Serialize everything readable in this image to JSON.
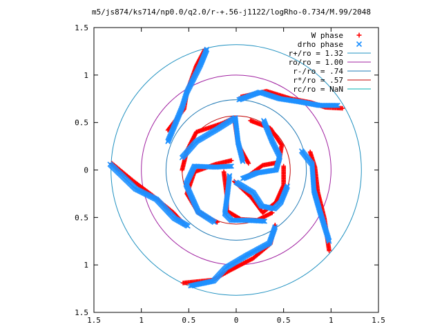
{
  "chart_data": {
    "type": "scatter",
    "title": "m5/js874/ks714/np0.0/q2.0/r-+.56-j1122/logRho-0.734/M.99/2048",
    "xlabel": "",
    "ylabel": "",
    "xlim": [
      -1.5,
      1.5
    ],
    "ylim": [
      -1.5,
      1.5
    ],
    "x_ticks": [
      -1.5,
      -1,
      -0.5,
      0,
      0.5,
      1,
      1.5
    ],
    "y_ticks": [
      -1.5,
      -1,
      -0.5,
      0,
      0.5,
      1,
      1.5
    ],
    "x_tick_labels": [
      "1.5",
      "1",
      "0.5",
      "0",
      "0.5",
      "1",
      "1.5"
    ],
    "y_tick_labels": [
      "1.5",
      "1",
      "0.5",
      "0",
      "0.5",
      "1",
      "1.5"
    ],
    "grid": false,
    "legend_position": "top-right",
    "circles": [
      {
        "label": "r+/ro = 1.32",
        "r": 1.32,
        "color": "#1e90c0"
      },
      {
        "label": "ro/ro = 1.00",
        "r": 1.0,
        "color": "#a020a0"
      },
      {
        "label": "r-/ro = .74",
        "r": 0.74,
        "color": "#1e78b4"
      },
      {
        "label": "r*/ro = .57",
        "r": 0.57,
        "color": "#c00000"
      },
      {
        "label": "rc/ro = NaN",
        "r": null,
        "color": "#00b0b0"
      }
    ],
    "series": [
      {
        "name": "W phase",
        "marker": "plus",
        "color": "#ff0000",
        "spirals": [
          [
            [
              -0.33,
              1.27
            ],
            [
              -0.42,
              1.1
            ],
            [
              -0.52,
              0.82
            ],
            [
              -0.55,
              0.64
            ],
            [
              -0.72,
              0.42
            ]
          ],
          [
            [
              0.05,
              0.77
            ],
            [
              0.32,
              0.83
            ],
            [
              0.58,
              0.75
            ],
            [
              0.79,
              0.71
            ],
            [
              0.94,
              0.66
            ],
            [
              1.12,
              0.65
            ]
          ],
          [
            [
              0.78,
              0.19
            ],
            [
              0.83,
              0.03
            ],
            [
              0.86,
              -0.23
            ],
            [
              0.93,
              -0.51
            ],
            [
              0.98,
              -0.85
            ]
          ],
          [
            [
              0.41,
              -0.58
            ],
            [
              0.36,
              -0.78
            ],
            [
              0.18,
              -0.93
            ],
            [
              -0.07,
              -1.06
            ],
            [
              -0.25,
              -1.16
            ],
            [
              -0.56,
              -1.19
            ]
          ],
          [
            [
              -0.55,
              -0.57
            ],
            [
              -0.66,
              -0.45
            ],
            [
              -0.88,
              -0.27
            ],
            [
              -1.08,
              -0.12
            ],
            [
              -1.31,
              0.07
            ]
          ],
          [
            [
              0.13,
              0.07
            ],
            [
              0.02,
              0.27
            ],
            [
              -0.02,
              0.55
            ],
            [
              -0.15,
              0.49
            ],
            [
              -0.42,
              0.4
            ],
            [
              -0.52,
              0.2
            ],
            [
              -0.57,
              0
            ]
          ],
          [
            [
              0.1,
              -0.08
            ],
            [
              0.28,
              0.05
            ],
            [
              0.45,
              0.08
            ],
            [
              0.48,
              0.26
            ],
            [
              0.36,
              0.44
            ],
            [
              0.15,
              0.52
            ]
          ],
          [
            [
              -0.02,
              -0.12
            ],
            [
              0.16,
              -0.29
            ],
            [
              0.28,
              -0.45
            ],
            [
              0.42,
              -0.34
            ],
            [
              0.5,
              -0.16
            ],
            [
              0.5,
              0.04
            ]
          ],
          [
            [
              -0.13,
              -0.02
            ],
            [
              -0.1,
              -0.26
            ],
            [
              -0.1,
              -0.43
            ],
            [
              0.05,
              -0.52
            ],
            [
              0.22,
              -0.53
            ],
            [
              0.38,
              -0.45
            ]
          ],
          [
            [
              -0.05,
              0.1
            ],
            [
              -0.22,
              0.06
            ],
            [
              -0.44,
              -0.02
            ],
            [
              -0.52,
              -0.25
            ],
            [
              -0.4,
              -0.45
            ],
            [
              -0.2,
              -0.55
            ]
          ]
        ]
      },
      {
        "name": "drho phase",
        "marker": "cross",
        "color": "#1e90ff",
        "spirals": [
          [
            [
              -0.31,
              1.27
            ],
            [
              -0.38,
              1.1
            ],
            [
              -0.52,
              0.82
            ],
            [
              -0.57,
              0.66
            ],
            [
              -0.72,
              0.3
            ]
          ],
          [
            [
              0.03,
              0.74
            ],
            [
              0.25,
              0.82
            ],
            [
              0.46,
              0.75
            ],
            [
              0.66,
              0.72
            ],
            [
              0.88,
              0.68
            ],
            [
              1.07,
              0.68
            ]
          ],
          [
            [
              0.69,
              0.2
            ],
            [
              0.8,
              0.06
            ],
            [
              0.82,
              -0.22
            ],
            [
              0.88,
              -0.43
            ],
            [
              0.98,
              -0.75
            ]
          ],
          [
            [
              0.41,
              -0.6
            ],
            [
              0.35,
              -0.77
            ],
            [
              0.11,
              -0.9
            ],
            [
              -0.11,
              -1.03
            ],
            [
              -0.24,
              -1.17
            ],
            [
              -0.48,
              -1.22
            ]
          ],
          [
            [
              -0.51,
              -0.59
            ],
            [
              -0.65,
              -0.51
            ],
            [
              -0.84,
              -0.31
            ],
            [
              -1.06,
              -0.2
            ],
            [
              -1.33,
              0.06
            ]
          ],
          [
            [
              0.07,
              0.09
            ],
            [
              0.02,
              0.29
            ],
            [
              -0.01,
              0.55
            ],
            [
              -0.2,
              0.43
            ],
            [
              -0.42,
              0.3
            ],
            [
              -0.57,
              0.13
            ]
          ],
          [
            [
              0.07,
              -0.09
            ],
            [
              0.22,
              -0.03
            ],
            [
              0.42,
              0
            ],
            [
              0.46,
              0.14
            ],
            [
              0.38,
              0.3
            ],
            [
              0.29,
              0.52
            ]
          ],
          [
            [
              0.0,
              -0.13
            ],
            [
              0.18,
              -0.24
            ],
            [
              0.27,
              -0.38
            ],
            [
              0.4,
              -0.41
            ],
            [
              0.47,
              -0.34
            ],
            [
              0.54,
              -0.17
            ]
          ],
          [
            [
              -0.07,
              -0.06
            ],
            [
              -0.09,
              -0.24
            ],
            [
              -0.12,
              -0.46
            ],
            [
              -0.05,
              -0.53
            ],
            [
              0.12,
              -0.53
            ],
            [
              0.3,
              -0.54
            ]
          ],
          [
            [
              -0.05,
              0.04
            ],
            [
              -0.22,
              0.03
            ],
            [
              -0.44,
              0.04
            ],
            [
              -0.53,
              -0.15
            ],
            [
              -0.4,
              -0.44
            ],
            [
              -0.23,
              -0.55
            ]
          ]
        ]
      }
    ]
  }
}
